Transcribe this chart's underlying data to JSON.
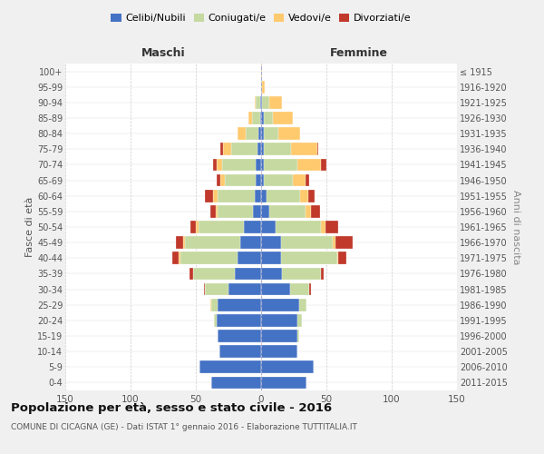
{
  "age_groups": [
    "0-4",
    "5-9",
    "10-14",
    "15-19",
    "20-24",
    "25-29",
    "30-34",
    "35-39",
    "40-44",
    "45-49",
    "50-54",
    "55-59",
    "60-64",
    "65-69",
    "70-74",
    "75-79",
    "80-84",
    "85-89",
    "90-94",
    "95-99",
    "100+"
  ],
  "birth_years": [
    "2011-2015",
    "2006-2010",
    "2001-2005",
    "1996-2000",
    "1991-1995",
    "1986-1990",
    "1981-1985",
    "1976-1980",
    "1971-1975",
    "1966-1970",
    "1961-1965",
    "1956-1960",
    "1951-1955",
    "1946-1950",
    "1941-1945",
    "1936-1940",
    "1931-1935",
    "1926-1930",
    "1921-1925",
    "1916-1920",
    "≤ 1915"
  ],
  "male": {
    "celibi": [
      38,
      47,
      32,
      33,
      34,
      33,
      25,
      20,
      18,
      16,
      13,
      6,
      5,
      4,
      4,
      3,
      2,
      1,
      1,
      0,
      0
    ],
    "coniugati": [
      0,
      0,
      0,
      0,
      2,
      5,
      18,
      32,
      44,
      42,
      35,
      27,
      28,
      24,
      26,
      20,
      10,
      6,
      3,
      0,
      0
    ],
    "vedovi": [
      0,
      0,
      0,
      0,
      0,
      1,
      0,
      0,
      1,
      2,
      2,
      2,
      4,
      3,
      4,
      6,
      6,
      3,
      1,
      0,
      0
    ],
    "divorziati": [
      0,
      0,
      0,
      0,
      0,
      0,
      1,
      3,
      5,
      5,
      4,
      4,
      6,
      3,
      3,
      2,
      0,
      0,
      0,
      0,
      0
    ]
  },
  "female": {
    "nubili": [
      35,
      40,
      28,
      28,
      28,
      29,
      22,
      16,
      15,
      15,
      11,
      6,
      4,
      2,
      2,
      2,
      2,
      2,
      1,
      0,
      0
    ],
    "coniugate": [
      0,
      0,
      0,
      1,
      3,
      6,
      15,
      30,
      43,
      40,
      35,
      28,
      26,
      22,
      26,
      21,
      11,
      7,
      5,
      1,
      0
    ],
    "vedove": [
      0,
      0,
      0,
      0,
      0,
      0,
      0,
      0,
      1,
      2,
      3,
      4,
      6,
      10,
      18,
      20,
      17,
      15,
      10,
      2,
      1
    ],
    "divorziate": [
      0,
      0,
      0,
      0,
      0,
      0,
      1,
      2,
      6,
      13,
      10,
      7,
      5,
      3,
      4,
      1,
      0,
      0,
      0,
      0,
      0
    ]
  },
  "colors": {
    "celibi": "#4472C4",
    "coniugati": "#c5d9a0",
    "vedovi": "#ffc96e",
    "divorziati": "#c0392b"
  },
  "xlim": 150,
  "title": "Popolazione per età, sesso e stato civile - 2016",
  "subtitle": "COMUNE DI CICAGNA (GE) - Dati ISTAT 1° gennaio 2016 - Elaborazione TUTTITALIA.IT",
  "xlabel_left": "Maschi",
  "xlabel_right": "Femmine",
  "ylabel_left": "Fasce di età",
  "ylabel_right": "Anni di nascita",
  "bg_color": "#f0f0f0",
  "plot_bg_color": "#ffffff",
  "xticks": [
    -150,
    -100,
    -50,
    0,
    50,
    100,
    150
  ]
}
